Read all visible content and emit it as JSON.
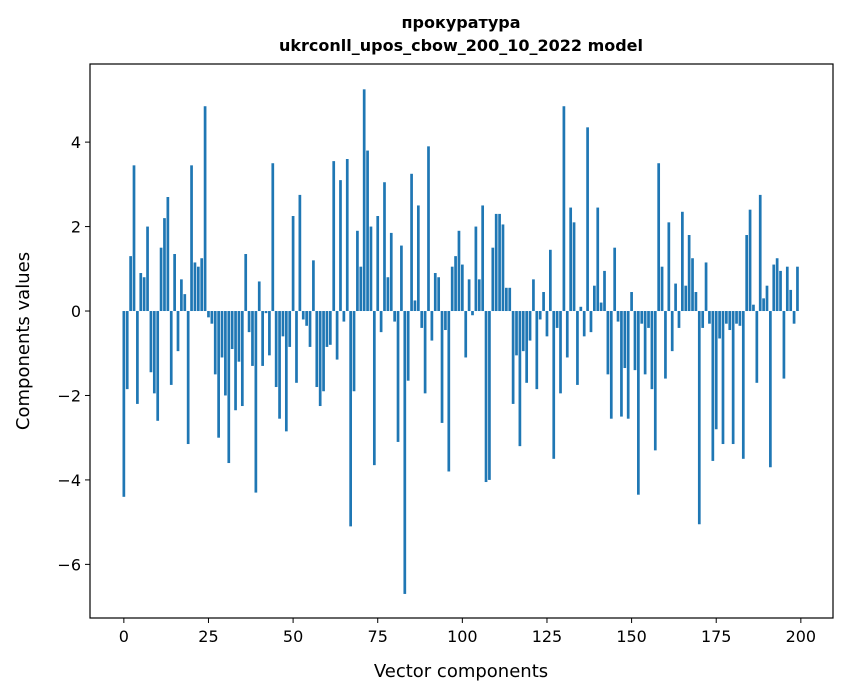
{
  "chart_data": {
    "type": "bar",
    "title": [
      "прокуратура",
      "ukrconll_upos_cbow_200_10_2022 model"
    ],
    "xlabel": "Vector components",
    "ylabel": "Components values",
    "xlim": [
      -10,
      209.5
    ],
    "ylim": [
      -7.27,
      5.85
    ],
    "xticks": [
      0,
      25,
      50,
      75,
      100,
      125,
      150,
      175,
      200
    ],
    "yticks": [
      -6,
      -4,
      -2,
      0,
      2,
      4
    ],
    "ytick_labels": [
      "−6",
      "−4",
      "−2",
      "0",
      "2",
      "4"
    ],
    "grid": false,
    "bar_color": "#1f77b4",
    "values": [
      -4.4,
      -1.85,
      1.3,
      3.45,
      -2.2,
      0.9,
      0.8,
      2.0,
      -1.45,
      -1.95,
      -2.6,
      1.5,
      2.2,
      2.7,
      -1.75,
      1.35,
      -0.95,
      0.75,
      0.4,
      -3.15,
      3.45,
      1.15,
      1.05,
      1.25,
      4.85,
      -0.15,
      -0.3,
      -1.5,
      -3.0,
      -1.1,
      -2.0,
      -3.6,
      -0.9,
      -2.35,
      -1.2,
      -2.25,
      1.35,
      -0.5,
      -1.3,
      -4.3,
      0.7,
      -1.3,
      -0.05,
      -1.05,
      3.5,
      -1.8,
      -2.55,
      -0.6,
      -2.85,
      -0.85,
      2.25,
      -1.7,
      2.75,
      -0.2,
      -0.35,
      -0.85,
      1.2,
      -1.8,
      -2.25,
      -1.9,
      -0.85,
      -0.8,
      3.55,
      -1.15,
      3.1,
      -0.25,
      3.6,
      -5.1,
      -1.9,
      1.9,
      1.05,
      5.25,
      3.8,
      2.0,
      -3.65,
      2.25,
      -0.5,
      3.05,
      0.8,
      1.85,
      -0.25,
      -3.1,
      1.55,
      -6.7,
      -1.65,
      3.25,
      0.25,
      2.5,
      -0.4,
      -1.95,
      3.9,
      -0.7,
      0.9,
      0.8,
      -2.65,
      -0.45,
      -3.8,
      1.05,
      1.3,
      1.9,
      1.1,
      -1.1,
      0.75,
      -0.1,
      2.0,
      0.75,
      2.5,
      -4.05,
      -4.0,
      1.5,
      2.3,
      2.3,
      2.05,
      0.55,
      0.55,
      -2.2,
      -1.05,
      -3.2,
      -0.95,
      -1.7,
      -0.7,
      0.75,
      -1.85,
      -0.2,
      0.45,
      -0.6,
      1.45,
      -3.5,
      -0.4,
      -1.95,
      4.85,
      -1.1,
      2.45,
      2.1,
      -1.75,
      0.1,
      -0.6,
      4.35,
      -0.5,
      0.6,
      2.45,
      0.2,
      0.95,
      -1.5,
      -2.55,
      1.5,
      -0.25,
      -2.5,
      -1.35,
      -2.55,
      0.45,
      -1.4,
      -4.35,
      -0.3,
      -1.5,
      -0.4,
      -1.85,
      -3.3,
      3.5,
      1.05,
      -1.6,
      2.1,
      -0.95,
      0.65,
      -0.4,
      2.35,
      0.6,
      1.8,
      1.25,
      0.45,
      -5.05,
      -0.4,
      1.15,
      -0.3,
      -3.55,
      -2.8,
      -0.65,
      -3.15,
      -0.3,
      -0.45,
      -3.15,
      -0.3,
      -0.35,
      -3.5,
      1.8,
      2.4,
      0.15,
      -1.7,
      2.75,
      0.3,
      0.6,
      -3.7,
      1.1,
      1.25,
      0.95,
      -1.6,
      1.05,
      0.5,
      -0.3,
      1.05
    ]
  }
}
